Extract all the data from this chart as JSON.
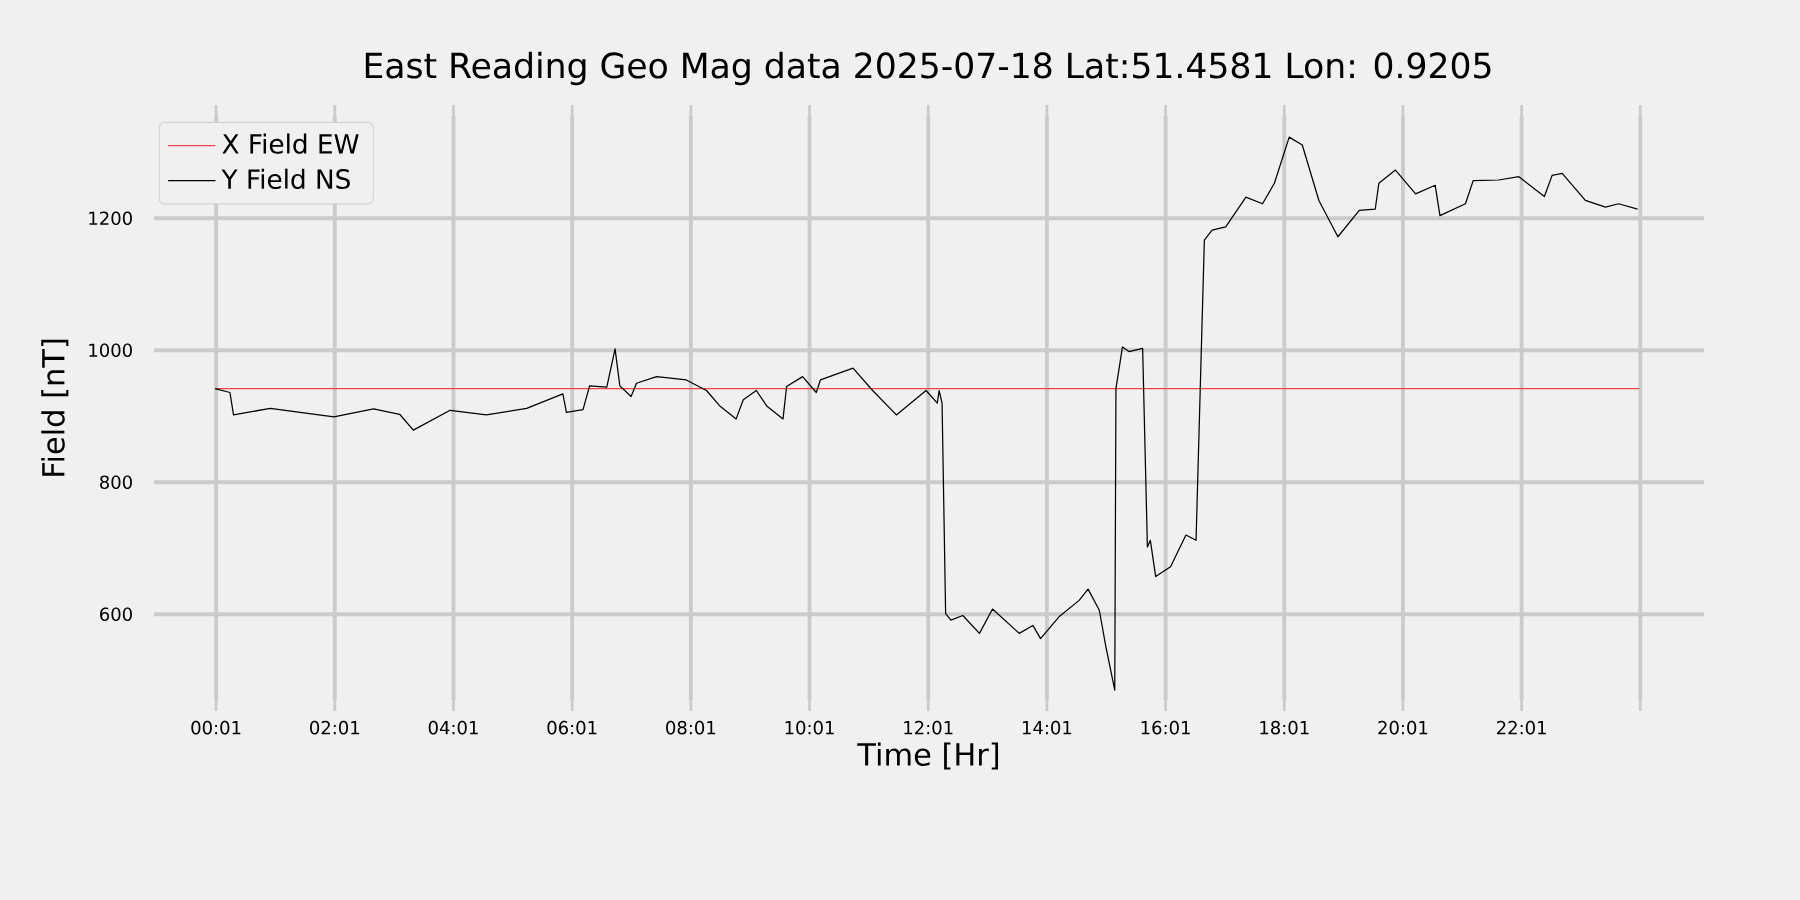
{
  "chart_data": {
    "type": "line",
    "title": "East Reading Geo Mag data        2025-07-18      Lat:51.4581  Lon: 0.9205",
    "xlabel": "Time  [Hr]",
    "ylabel": "Field  [nT]",
    "xlim": [
      -1.03,
      25.09
    ],
    "ylim": [
      470,
      1355
    ],
    "xticks": [
      {
        "value": 0.0167,
        "label": "00:01"
      },
      {
        "value": 2.0167,
        "label": "02:01"
      },
      {
        "value": 4.0167,
        "label": "04:01"
      },
      {
        "value": 6.0167,
        "label": "06:01"
      },
      {
        "value": 8.0167,
        "label": "08:01"
      },
      {
        "value": 10.0167,
        "label": "10:01"
      },
      {
        "value": 12.0167,
        "label": "12:01"
      },
      {
        "value": 14.0167,
        "label": "14:01"
      },
      {
        "value": 16.0167,
        "label": "16:01"
      },
      {
        "value": 18.0167,
        "label": "18:01"
      },
      {
        "value": 20.0167,
        "label": "20:01"
      },
      {
        "value": 22.0167,
        "label": "22:01"
      },
      {
        "value": 24.0167,
        "label": null
      }
    ],
    "yticks": [
      600,
      800,
      1000,
      1200
    ],
    "grid": true,
    "legend": "top left",
    "marker": "none",
    "line_style": "solid",
    "series": [
      {
        "name": "X Field EW",
        "color": "#ee4444",
        "x": [
          0.0,
          12.0,
          24.0
        ],
        "values": [
          942,
          942,
          942
        ]
      },
      {
        "name": "Y Field NS",
        "color": "#000000",
        "x": [
          0.0,
          0.25,
          0.31,
          0.93,
          2.0,
          2.67,
          3.11,
          3.34,
          3.96,
          4.57,
          5.25,
          5.86,
          5.92,
          6.2,
          6.31,
          6.6,
          6.74,
          6.82,
          7.01,
          7.1,
          7.44,
          7.94,
          8.28,
          8.5,
          8.78,
          8.9,
          9.12,
          9.3,
          9.57,
          9.63,
          9.9,
          10.13,
          10.2,
          10.75,
          11.08,
          11.48,
          11.98,
          12.17,
          12.2,
          12.25,
          12.31,
          12.4,
          12.6,
          12.88,
          13.1,
          13.55,
          13.78,
          13.91,
          14.22,
          14.56,
          14.71,
          14.9,
          15.01,
          15.16,
          15.18,
          15.29,
          15.4,
          15.63,
          15.71,
          15.76,
          15.85,
          16.1,
          16.36,
          16.53,
          16.67,
          16.8,
          17.03,
          17.37,
          17.65,
          17.85,
          18.1,
          18.32,
          18.6,
          18.92,
          19.28,
          19.55,
          19.61,
          19.89,
          20.23,
          20.56,
          20.64,
          21.07,
          21.2,
          21.63,
          21.97,
          22.4,
          22.53,
          22.7,
          23.09,
          23.43,
          23.65,
          23.97
        ],
        "values": [
          942,
          936,
          902,
          912,
          899,
          911,
          903,
          879,
          909,
          902,
          912,
          934,
          906,
          910,
          946,
          944,
          1002,
          946,
          930,
          950,
          960,
          955,
          939,
          916,
          896,
          925,
          939,
          915,
          896,
          945,
          960,
          936,
          955,
          973,
          939,
          902,
          939,
          920,
          939,
          920,
          601,
          591,
          598,
          571,
          608,
          571,
          583,
          563,
          596,
          621,
          638,
          606,
          551,
          485,
          942,
          1005,
          998,
          1003,
          702,
          712,
          657,
          672,
          720,
          712,
          1167,
          1182,
          1187,
          1232,
          1222,
          1253,
          1323,
          1311,
          1227,
          1172,
          1212,
          1214,
          1253,
          1273,
          1237,
          1250,
          1204,
          1222,
          1257,
          1258,
          1263,
          1233,
          1265,
          1268,
          1227,
          1217,
          1222,
          1214
        ]
      }
    ]
  }
}
